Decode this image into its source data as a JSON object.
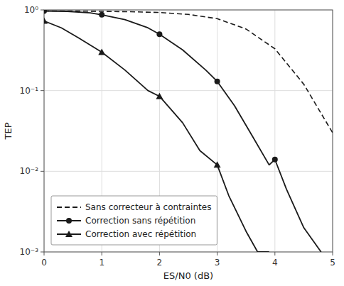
{
  "chart_data": {
    "type": "line",
    "xlabel": "ES/N0 (dB)",
    "ylabel": "TEP",
    "log": "y",
    "grid": true,
    "legend": "lower left",
    "xlim": [
      0,
      5
    ],
    "xticks": [
      0,
      1,
      2,
      3,
      4,
      5
    ],
    "ylim": [
      0.001,
      1
    ],
    "yticks": [
      {
        "value": 0.001,
        "label": "10⁻³"
      },
      {
        "value": 0.01,
        "label": "10⁻²"
      },
      {
        "value": 0.1,
        "label": "10⁻¹"
      },
      {
        "value": 1,
        "label": "10⁰"
      }
    ],
    "series": [
      {
        "name": "Sans correcteur à contraintes",
        "color": "#1a1a1a",
        "line_style": "dashed",
        "x": [
          0.0,
          0.5,
          1.0,
          1.5,
          2.0,
          2.5,
          3.0,
          3.5,
          4.0,
          4.5,
          5.0
        ],
        "values": [
          0.97,
          0.97,
          0.96,
          0.95,
          0.93,
          0.88,
          0.78,
          0.58,
          0.33,
          0.12,
          0.03
        ]
      },
      {
        "name": "Correction sans répétition",
        "color": "#1a1a1a",
        "line_style": "solid",
        "marker": "circle",
        "x": [
          0.0,
          0.4,
          0.8,
          1.0,
          1.4,
          1.8,
          2.0,
          2.4,
          2.8,
          3.0,
          3.3,
          3.6,
          3.9,
          4.0,
          4.2,
          4.5,
          4.8
        ],
        "values": [
          0.97,
          0.96,
          0.92,
          0.87,
          0.76,
          0.6,
          0.5,
          0.32,
          0.18,
          0.13,
          0.065,
          0.028,
          0.012,
          0.014,
          0.006,
          0.002,
          0.001
        ],
        "marker_x": [
          0,
          1,
          2,
          3,
          4
        ],
        "marker_values": [
          0.97,
          0.87,
          0.5,
          0.13,
          0.014
        ]
      },
      {
        "name": "Correction avec répétition",
        "color": "#1a1a1a",
        "line_style": "solid",
        "marker": "triangle",
        "x": [
          0.0,
          0.3,
          0.6,
          1.0,
          1.4,
          1.8,
          2.0,
          2.4,
          2.7,
          3.0,
          3.2,
          3.5,
          3.7,
          3.9
        ],
        "values": [
          0.73,
          0.6,
          0.45,
          0.3,
          0.18,
          0.1,
          0.085,
          0.04,
          0.018,
          0.012,
          0.005,
          0.0018,
          0.001,
          0.001
        ],
        "marker_x": [
          0,
          1,
          2,
          3
        ],
        "marker_values": [
          0.73,
          0.3,
          0.085,
          0.012
        ]
      }
    ]
  }
}
